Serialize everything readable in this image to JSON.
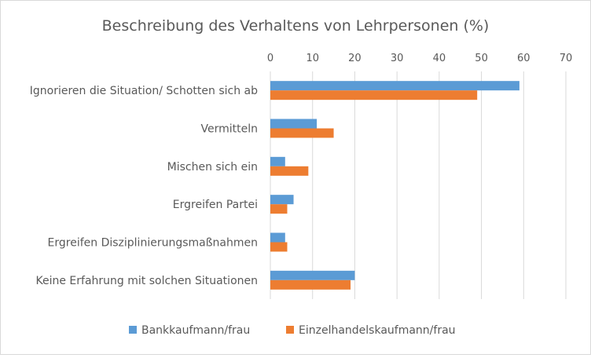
{
  "chart_data": {
    "type": "bar",
    "orientation": "horizontal",
    "title": "Beschreibung des Verhaltens von Lehrpersonen (%)",
    "categories": [
      "Ignorieren die Situation/ Schotten sich ab",
      "Vermitteln",
      "Mischen sich ein",
      "Ergreifen Partei",
      "Ergreifen Disziplinierungsmaßnahmen",
      "Keine Erfahrung mit solchen Situationen"
    ],
    "series": [
      {
        "name": "Bankkaufmann/frau",
        "color": "#5b9bd5",
        "values": [
          59,
          11,
          3.5,
          5.5,
          3.5,
          20
        ]
      },
      {
        "name": "Einzelhandelskaufmann/frau",
        "color": "#ed7d31",
        "values": [
          49,
          15,
          9,
          4,
          4,
          19
        ]
      }
    ],
    "xlim": [
      0,
      70
    ],
    "xticks": [
      "0",
      "10",
      "20",
      "30",
      "40",
      "50",
      "60",
      "70"
    ],
    "grid": true,
    "x_axis_position": "top",
    "legend_position": "bottom"
  }
}
